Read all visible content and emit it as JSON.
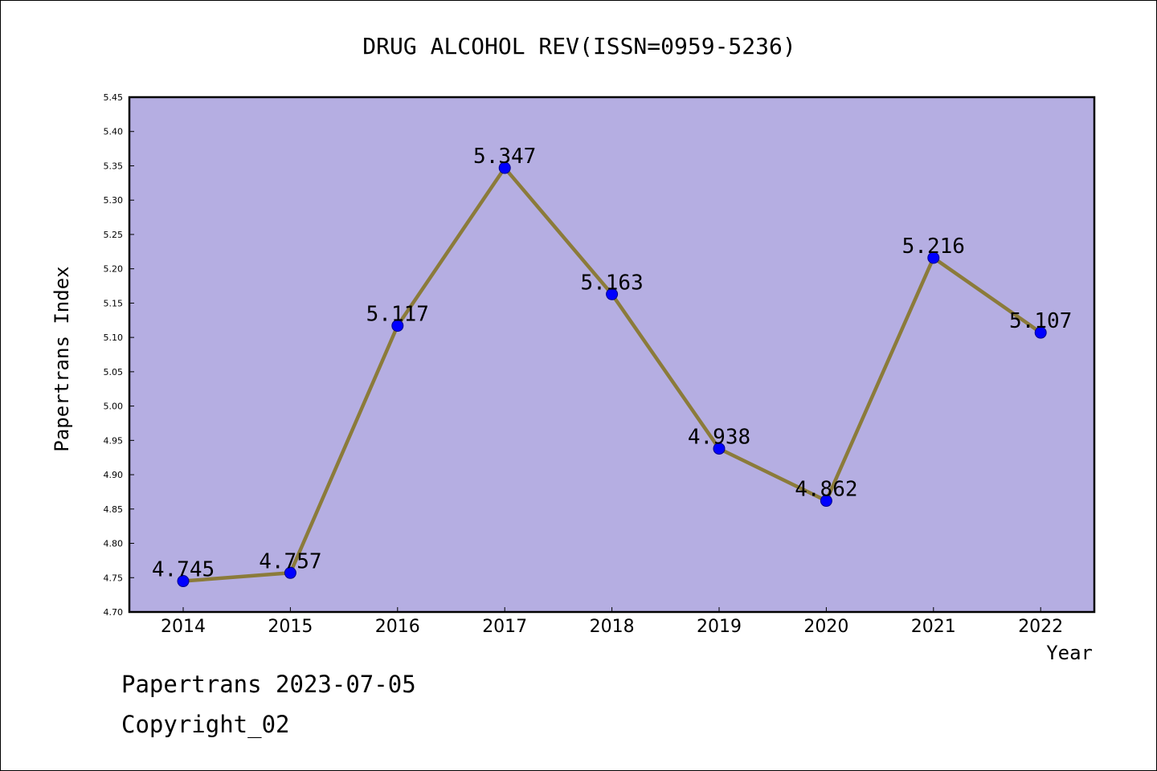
{
  "chart_data": {
    "type": "line",
    "title": "DRUG ALCOHOL REV(ISSN=0959-5236)",
    "xlabel": "Year",
    "ylabel": "Papertrans Index",
    "categories": [
      "2014",
      "2015",
      "2016",
      "2017",
      "2018",
      "2019",
      "2020",
      "2021",
      "2022"
    ],
    "values": [
      4.745,
      4.757,
      5.117,
      5.347,
      5.163,
      4.938,
      4.862,
      5.216,
      5.107
    ],
    "data_labels": [
      "4.745",
      "4.757",
      "5.117",
      "5.347",
      "5.163",
      "4.938",
      "4.862",
      "5.216",
      "5.107"
    ],
    "ylim": [
      4.7,
      5.45
    ],
    "yticks": [
      "4.70",
      "4.75",
      "4.80",
      "4.85",
      "4.90",
      "4.95",
      "5.00",
      "5.05",
      "5.10",
      "5.15",
      "5.20",
      "5.25",
      "5.30",
      "5.35",
      "5.40",
      "5.45"
    ],
    "grid": false,
    "legend": "none",
    "colors": {
      "plot_background": "#b5aee2",
      "line": "#8b7b3a",
      "marker": "#0000ff",
      "marker_edge": "#00008b",
      "frame": "#000000"
    }
  },
  "footer": {
    "line1": "Papertrans 2023-07-05",
    "line2": "Copyright_02"
  }
}
